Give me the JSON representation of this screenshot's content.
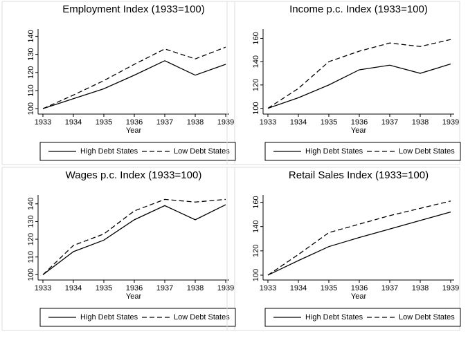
{
  "chart_data": [
    {
      "type": "line",
      "title": "Employment Index (1933=100)",
      "xlabel": "Year",
      "x": [
        1933,
        1934,
        1935,
        1936,
        1937,
        1938,
        1939
      ],
      "xlim": [
        1933,
        1939
      ],
      "xticks": [
        1933,
        1934,
        1935,
        1936,
        1937,
        1938,
        1939
      ],
      "ylim": [
        97,
        144
      ],
      "yticks": [
        100,
        110,
        120,
        130,
        140
      ],
      "series": [
        {
          "name": "High Debt States",
          "color": "#000000",
          "style": "solid",
          "values": [
            100,
            105.5,
            111,
            118.5,
            126.5,
            118.5,
            124.5
          ]
        },
        {
          "name": "Low Debt States",
          "color": "#000000",
          "style": "dashed",
          "values": [
            100,
            107.5,
            115.5,
            124.5,
            133,
            127.5,
            134
          ]
        }
      ]
    },
    {
      "type": "line",
      "title": "Income p.c. Index (1933=100)",
      "xlabel": "Year",
      "x": [
        1933,
        1934,
        1935,
        1936,
        1937,
        1938,
        1939
      ],
      "xlim": [
        1933,
        1939
      ],
      "xticks": [
        1933,
        1934,
        1935,
        1936,
        1937,
        1938,
        1939
      ],
      "ylim": [
        95,
        168
      ],
      "yticks": [
        100,
        120,
        140,
        160
      ],
      "series": [
        {
          "name": "High Debt States",
          "color": "#000000",
          "style": "solid",
          "values": [
            100,
            109,
            120,
            133,
            137,
            130,
            138
          ]
        },
        {
          "name": "Low Debt States",
          "color": "#000000",
          "style": "dashed",
          "values": [
            100,
            117,
            140,
            149,
            156,
            153,
            159
          ]
        }
      ]
    },
    {
      "type": "line",
      "title": "Wages p.c. Index (1933=100)",
      "xlabel": "Year",
      "x": [
        1933,
        1934,
        1935,
        1936,
        1937,
        1938,
        1939
      ],
      "xlim": [
        1933,
        1939
      ],
      "xticks": [
        1933,
        1934,
        1935,
        1936,
        1937,
        1938,
        1939
      ],
      "ylim": [
        97,
        145
      ],
      "yticks": [
        100,
        110,
        120,
        130,
        140
      ],
      "series": [
        {
          "name": "High Debt States",
          "color": "#000000",
          "style": "solid",
          "values": [
            100,
            113,
            119.5,
            131,
            139,
            131,
            139.5
          ]
        },
        {
          "name": "Low Debt States",
          "color": "#000000",
          "style": "dashed",
          "values": [
            100,
            116.5,
            123,
            136,
            142.5,
            141,
            142.5
          ]
        }
      ]
    },
    {
      "type": "line",
      "title": "Retail Sales Index (1933=100)",
      "xlabel": "Year",
      "x": [
        1933,
        1934,
        1935,
        1936,
        1937,
        1938,
        1939
      ],
      "xlim": [
        1933,
        1939
      ],
      "xticks": [
        1933,
        1934,
        1935,
        1936,
        1937,
        1938,
        1939
      ],
      "ylim": [
        96,
        166
      ],
      "yticks": [
        100,
        120,
        140,
        160
      ],
      "series": [
        {
          "name": "High Debt States",
          "color": "#000000",
          "style": "solid",
          "values": [
            100,
            112,
            123.5,
            131,
            138,
            145,
            152
          ]
        },
        {
          "name": "Low Debt States",
          "color": "#000000",
          "style": "dashed",
          "values": [
            100,
            117,
            135,
            142,
            149,
            155,
            161
          ]
        }
      ]
    }
  ]
}
